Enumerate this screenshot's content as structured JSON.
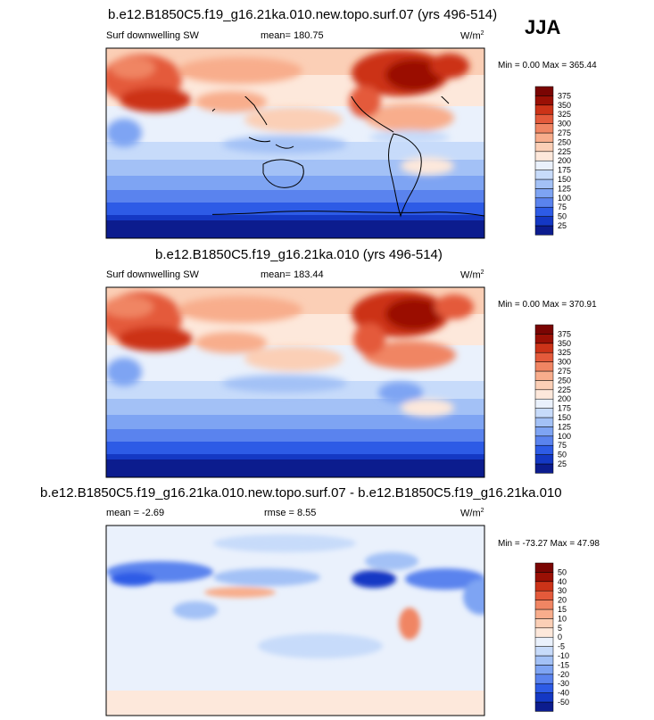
{
  "season": "JJA",
  "panels": [
    {
      "title": "b.e12.B1850C5.f19_g16.21ka.010.new.topo.surf.07 (yrs 496-514)",
      "left_label": "Surf downwelling SW",
      "center_label": "mean= 180.75",
      "units": "W/m",
      "units_sup": "2",
      "minmax": "Min =   0.00 Max = 365.44"
    },
    {
      "title": "b.e12.B1850C5.f19_g16.21ka.010 (yrs 496-514)",
      "left_label": "Surf downwelling SW",
      "center_label": "mean= 183.44",
      "units": "W/m",
      "units_sup": "2",
      "minmax": "Min =   0.00 Max = 370.91"
    },
    {
      "title": "b.e12.B1850C5.f19_g16.21ka.010.new.topo.surf.07 - b.e12.B1850C5.f19_g16.21ka.010",
      "left_label": "mean =  -2.69",
      "center_label": "rmse =   8.55",
      "units": "W/m",
      "units_sup": "2",
      "minmax": "Min = -73.27 Max =  47.98"
    }
  ],
  "chart_data": [
    {
      "type": "heatmap",
      "variable": "Surf downwelling SW",
      "units": "W/m2",
      "mean": 180.75,
      "min": 0.0,
      "max": 365.44,
      "colorbar_levels": [
        25,
        50,
        75,
        100,
        125,
        150,
        175,
        200,
        225,
        250,
        275,
        300,
        325,
        350,
        375
      ]
    },
    {
      "type": "heatmap",
      "variable": "Surf downwelling SW",
      "units": "W/m2",
      "mean": 183.44,
      "min": 0.0,
      "max": 370.91,
      "colorbar_levels": [
        25,
        50,
        75,
        100,
        125,
        150,
        175,
        200,
        225,
        250,
        275,
        300,
        325,
        350,
        375
      ]
    },
    {
      "type": "heatmap",
      "variable": "difference",
      "units": "W/m2",
      "mean": -2.69,
      "rmse": 8.55,
      "min": -73.27,
      "max": 47.98,
      "colorbar_levels": [
        -50,
        -40,
        -30,
        -20,
        -15,
        -10,
        -5,
        0,
        5,
        10,
        15,
        20,
        30,
        40,
        50
      ]
    }
  ],
  "colors": {
    "abs_scale": [
      "#0c1c8e",
      "#1438c4",
      "#2d5be6",
      "#5a83ee",
      "#7ea4f3",
      "#a3c1f6",
      "#c7dbfa",
      "#eaf1fc",
      "#fde8db",
      "#fbcfb6",
      "#f8ad8c",
      "#f08563",
      "#e45a3b",
      "#cc3318",
      "#9a1005",
      "#7a0503"
    ],
    "diff_scale": [
      "#0c1c8e",
      "#1438c4",
      "#2d5be6",
      "#5a83ee",
      "#7ea4f3",
      "#a3c1f6",
      "#c7dbfa",
      "#eaf1fc",
      "#fde8db",
      "#fbcfb6",
      "#f8ad8c",
      "#f08563",
      "#e45a3b",
      "#cc3318",
      "#9a1005",
      "#7a0503"
    ]
  }
}
